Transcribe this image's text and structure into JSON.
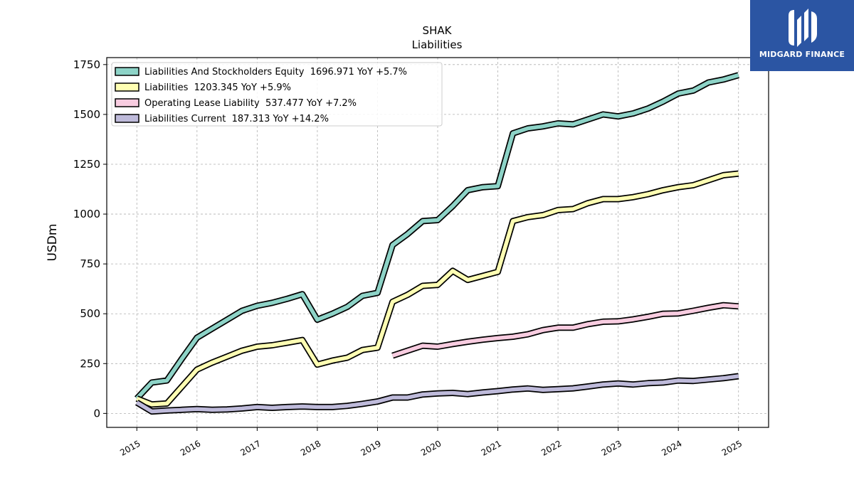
{
  "chart_data": {
    "type": "line",
    "title": "SHAK",
    "subtitle": "Liabilities",
    "ylabel": "USDm",
    "xlabel": "",
    "xlim": [
      2014.5,
      2025.5
    ],
    "ylim": [
      -70,
      1785
    ],
    "yticks": [
      0,
      250,
      500,
      750,
      1000,
      1250,
      1500,
      1750
    ],
    "xticks": [
      "2015",
      "2016",
      "2017",
      "2018",
      "2019",
      "2020",
      "2021",
      "2022",
      "2023",
      "2024",
      "2025"
    ],
    "grid": true,
    "legend_position": "top-left",
    "series": [
      {
        "name": "Liabilities And Stockholders Equity",
        "legend": "Liabilities And Stockholders Equity  1696.971 YoY +5.7%",
        "color": "#8dd3c7",
        "x": [
          2015.0,
          2015.25,
          2015.5,
          2015.75,
          2016.0,
          2016.25,
          2016.5,
          2016.75,
          2017.0,
          2017.25,
          2017.5,
          2017.75,
          2018.0,
          2018.25,
          2018.5,
          2018.75,
          2019.0,
          2019.25,
          2019.5,
          2019.75,
          2020.0,
          2020.25,
          2020.5,
          2020.75,
          2021.0,
          2021.25,
          2021.5,
          2021.75,
          2022.0,
          2022.25,
          2022.5,
          2022.75,
          2023.0,
          2023.25,
          2023.5,
          2023.75,
          2024.0,
          2024.25,
          2024.5,
          2024.75,
          2025.0
        ],
        "y": [
          75,
          155,
          165,
          275,
          380,
          425,
          470,
          515,
          540,
          555,
          575,
          598,
          470,
          500,
          535,
          590,
          605,
          845,
          900,
          965,
          970,
          1040,
          1120,
          1135,
          1140,
          1405,
          1430,
          1440,
          1455,
          1450,
          1475,
          1500,
          1490,
          1505,
          1530,
          1565,
          1605,
          1620,
          1660,
          1675,
          1697
        ]
      },
      {
        "name": "Liabilities",
        "legend": "Liabilities  1203.345 YoY +5.9%",
        "color": "#ffffb3",
        "x": [
          2015.0,
          2015.25,
          2015.5,
          2015.75,
          2016.0,
          2016.25,
          2016.5,
          2016.75,
          2017.0,
          2017.25,
          2017.5,
          2017.75,
          2018.0,
          2018.25,
          2018.5,
          2018.75,
          2019.0,
          2019.25,
          2019.5,
          2019.75,
          2020.0,
          2020.25,
          2020.5,
          2020.75,
          2021.0,
          2021.25,
          2021.5,
          2021.75,
          2022.0,
          2022.25,
          2022.5,
          2022.75,
          2023.0,
          2023.25,
          2023.5,
          2023.75,
          2024.0,
          2024.25,
          2024.5,
          2024.75,
          2025.0
        ],
        "y": [
          75,
          45,
          50,
          135,
          220,
          255,
          285,
          315,
          335,
          342,
          355,
          368,
          245,
          265,
          280,
          318,
          330,
          560,
          595,
          640,
          645,
          715,
          670,
          690,
          710,
          965,
          985,
          995,
          1020,
          1025,
          1055,
          1075,
          1075,
          1085,
          1100,
          1120,
          1135,
          1145,
          1170,
          1195,
          1203
        ]
      },
      {
        "name": "Operating Lease Liability",
        "legend": "Operating Lease Liability  537.477 YoY +7.2%",
        "color": "#f8cce0",
        "x": [
          2019.25,
          2019.5,
          2019.75,
          2020.0,
          2020.25,
          2020.5,
          2020.75,
          2021.0,
          2021.25,
          2021.5,
          2021.75,
          2022.0,
          2022.25,
          2022.5,
          2022.75,
          2023.0,
          2023.25,
          2023.5,
          2023.75,
          2024.0,
          2024.25,
          2024.5,
          2024.75,
          2025.0
        ],
        "y": [
          290,
          315,
          340,
          335,
          348,
          360,
          370,
          378,
          385,
          397,
          418,
          430,
          430,
          448,
          460,
          462,
          472,
          485,
          500,
          502,
          515,
          530,
          543,
          537
        ]
      },
      {
        "name": "Liabilities Current",
        "legend": "Liabilities Current  187.313 YoY +14.2%",
        "color": "#bebada",
        "x": [
          2015.0,
          2015.25,
          2015.5,
          2015.75,
          2016.0,
          2016.25,
          2016.5,
          2016.75,
          2017.0,
          2017.25,
          2017.5,
          2017.75,
          2018.0,
          2018.25,
          2018.5,
          2018.75,
          2019.0,
          2019.25,
          2019.5,
          2019.75,
          2020.0,
          2020.25,
          2020.5,
          2020.75,
          2021.0,
          2021.25,
          2021.5,
          2021.75,
          2022.0,
          2022.25,
          2022.5,
          2022.75,
          2023.0,
          2023.25,
          2023.5,
          2023.75,
          2024.0,
          2024.25,
          2024.5,
          2024.75,
          2025.0
        ],
        "y": [
          55,
          10,
          15,
          18,
          22,
          18,
          20,
          25,
          32,
          28,
          32,
          35,
          32,
          32,
          38,
          48,
          60,
          80,
          80,
          95,
          100,
          103,
          97,
          105,
          112,
          120,
          125,
          118,
          122,
          126,
          135,
          145,
          150,
          145,
          152,
          155,
          165,
          163,
          170,
          177,
          187
        ]
      }
    ]
  },
  "watermark": {
    "brand_text": "MIDGARD FINANCE",
    "background": "#2b55a3"
  }
}
